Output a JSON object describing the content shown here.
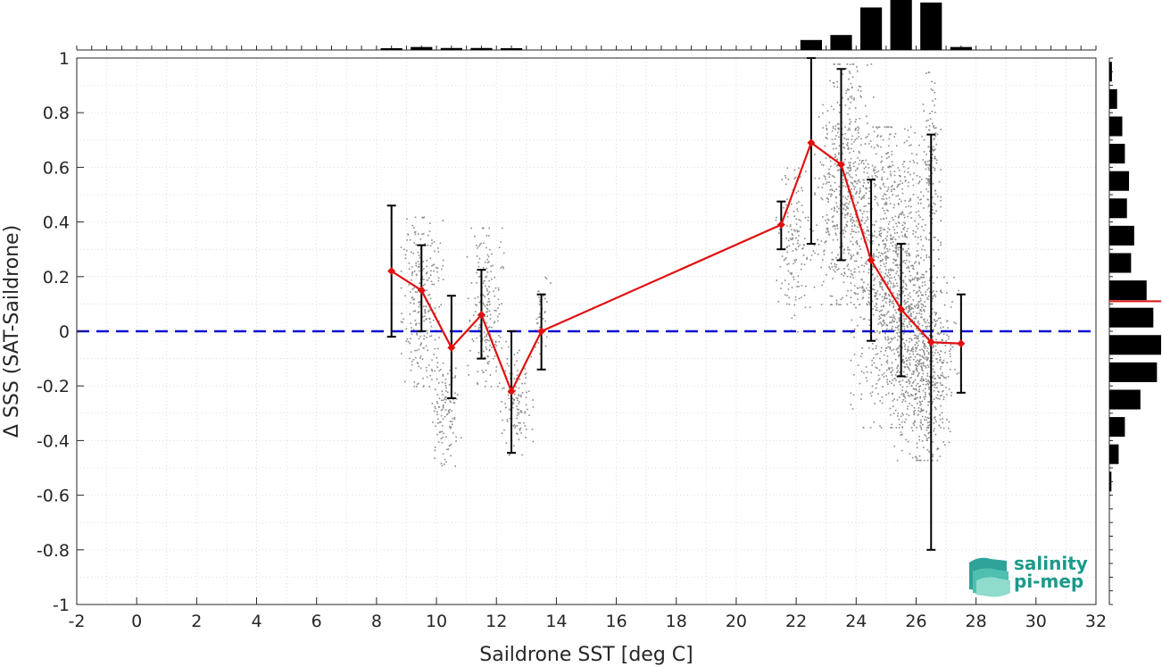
{
  "chart_data": {
    "type": "scatter",
    "xlabel": "Saildrone SST [deg C]",
    "ylabel": "Δ SSS (SAT-Saildrone)",
    "xlim": [
      -2,
      32
    ],
    "ylim": [
      -1,
      1
    ],
    "xticks": [
      -2,
      0,
      2,
      4,
      6,
      8,
      10,
      12,
      14,
      16,
      18,
      20,
      22,
      24,
      26,
      28,
      30,
      32
    ],
    "yticks": [
      -1,
      -0.8,
      -0.6,
      -0.4,
      -0.2,
      0,
      0.2,
      0.4,
      0.6,
      0.8,
      1
    ],
    "grid": true,
    "zero_line": {
      "y": 0,
      "color": "#1010d0",
      "style": "dashed"
    },
    "binned_mean": {
      "color": "#e01010",
      "marker": "diamond",
      "x": [
        8.5,
        9.5,
        10.5,
        11.5,
        12.5,
        13.5,
        21.5,
        22.5,
        23.5,
        24.5,
        25.5,
        26.5,
        27.5
      ],
      "y": [
        0.22,
        0.15,
        -0.06,
        0.06,
        -0.22,
        0.0,
        0.39,
        0.69,
        0.61,
        0.26,
        0.08,
        -0.04,
        -0.045
      ],
      "err_low": [
        -0.02,
        0.0,
        -0.245,
        -0.1,
        -0.445,
        -0.14,
        0.3,
        0.32,
        0.26,
        -0.035,
        -0.165,
        -0.8,
        -0.225
      ],
      "err_high": [
        0.46,
        0.315,
        0.13,
        0.225,
        0.0,
        0.135,
        0.475,
        1.0,
        0.96,
        0.555,
        0.32,
        0.72,
        0.135
      ]
    },
    "scatter_color": "#8a8a8a",
    "scatter_clusters": [
      {
        "x": [
          8.8,
          10.2
        ],
        "y": [
          -0.2,
          0.42
        ],
        "n": 260
      },
      {
        "x": [
          9.8,
          10.8
        ],
        "y": [
          -0.5,
          -0.1
        ],
        "n": 120
      },
      {
        "x": [
          11.0,
          12.3
        ],
        "y": [
          -0.2,
          0.38
        ],
        "n": 200
      },
      {
        "x": [
          12.1,
          13.2
        ],
        "y": [
          -0.45,
          -0.05
        ],
        "n": 120
      },
      {
        "x": [
          13.2,
          13.8
        ],
        "y": [
          -0.1,
          0.2
        ],
        "n": 40
      },
      {
        "x": [
          21.3,
          22.6
        ],
        "y": [
          0.0,
          0.6
        ],
        "n": 150
      },
      {
        "x": [
          22.6,
          24.6
        ],
        "y": [
          0.1,
          0.98
        ],
        "n": 550
      },
      {
        "x": [
          23.8,
          26.8
        ],
        "y": [
          -0.35,
          0.75
        ],
        "n": 1200
      },
      {
        "x": [
          25.2,
          27.4
        ],
        "y": [
          -0.47,
          0.2
        ],
        "n": 550
      },
      {
        "x": [
          26.2,
          26.8
        ],
        "y": [
          0.3,
          0.95
        ],
        "n": 120
      }
    ],
    "top_histogram": {
      "bin_centers": [
        8.5,
        9.5,
        10.5,
        11.5,
        12.5,
        22.5,
        23.5,
        24.5,
        25.5,
        26.5,
        27.5
      ],
      "counts": [
        0.02,
        0.06,
        0.04,
        0.04,
        0.02,
        0.2,
        0.3,
        0.85,
        1.0,
        0.95,
        0.06
      ]
    },
    "right_histogram": {
      "bin_centers": [
        0.95,
        0.85,
        0.75,
        0.65,
        0.55,
        0.45,
        0.35,
        0.25,
        0.15,
        0.05,
        -0.05,
        -0.15,
        -0.25,
        -0.35,
        -0.45,
        -0.55
      ],
      "counts": [
        0.05,
        0.15,
        0.25,
        0.3,
        0.38,
        0.34,
        0.48,
        0.42,
        0.72,
        0.85,
        1.0,
        0.92,
        0.6,
        0.3,
        0.18,
        0.04
      ],
      "median": 0.11,
      "median_color": "#e01010"
    }
  },
  "logo": {
    "line1": "salinity",
    "line2": "pi-mep"
  }
}
